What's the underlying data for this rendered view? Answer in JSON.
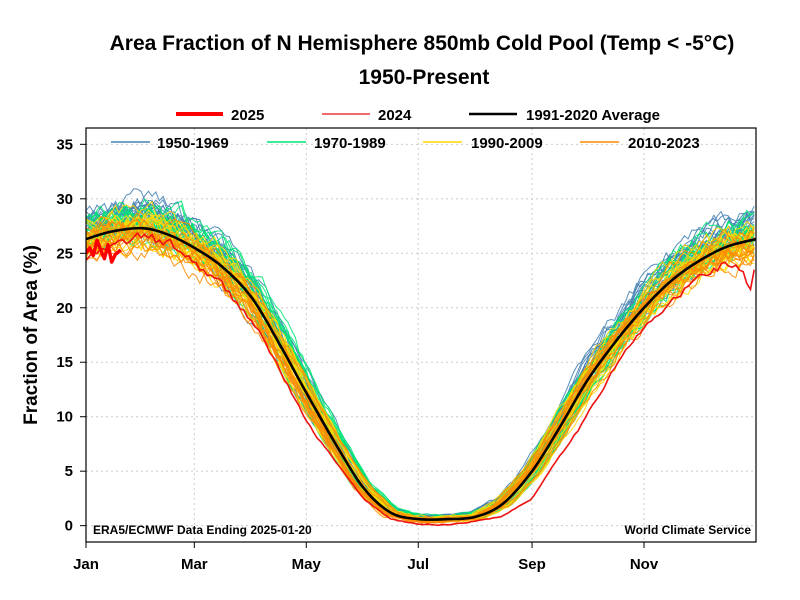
{
  "chart_data": {
    "type": "line",
    "title": "Area Fraction of N Hemisphere 850mb Cold Pool (Temp < -5°C)",
    "subtitle": "1950-Present",
    "xlabel": "",
    "ylabel": "Fraction of Area (%)",
    "xlim": [
      1,
      366
    ],
    "ylim": [
      -1.5,
      36.5
    ],
    "grid": true,
    "x_ticks": [
      {
        "day": 1,
        "label": "Jan"
      },
      {
        "day": 60,
        "label": "Mar"
      },
      {
        "day": 121,
        "label": "May"
      },
      {
        "day": 182,
        "label": "Jul"
      },
      {
        "day": 244,
        "label": "Sep"
      },
      {
        "day": 305,
        "label": "Nov"
      }
    ],
    "y_ticks": [
      0,
      5,
      10,
      15,
      20,
      25,
      30,
      35
    ],
    "annotations": {
      "left": "ERA5/ECMWF Data Ending 2025-01-20",
      "right": "World Climate Service"
    },
    "legend_top": [
      {
        "label": "2025",
        "color": "#ff0000",
        "width": 4
      },
      {
        "label": "2024",
        "color": "#ee1111",
        "width": 1.3
      },
      {
        "label": "1991-2020 Average",
        "color": "#000000",
        "width": 2.5
      }
    ],
    "legend_inner": [
      {
        "label": "1950-1969",
        "color": "#4682b4"
      },
      {
        "label": "1970-1989",
        "color": "#00e676"
      },
      {
        "label": "1990-2009",
        "color": "#ffd700"
      },
      {
        "label": "2010-2023",
        "color": "#ff8c00"
      }
    ],
    "average": {
      "name": "1991-2020 Average",
      "color": "#000000",
      "x": [
        1,
        15,
        32,
        46,
        60,
        75,
        91,
        106,
        121,
        137,
        152,
        167,
        182,
        198,
        213,
        228,
        244,
        259,
        274,
        290,
        305,
        320,
        335,
        350,
        366
      ],
      "y": [
        26.3,
        27.0,
        27.3,
        26.7,
        25.5,
        23.8,
        21.0,
        16.8,
        12.2,
        7.5,
        3.5,
        1.2,
        0.6,
        0.6,
        0.8,
        2.0,
        5.0,
        9.0,
        13.3,
        17.0,
        20.0,
        22.5,
        24.3,
        25.6,
        26.3
      ]
    },
    "series_2025": {
      "name": "2025",
      "color": "#ff0000",
      "x": [
        1,
        3,
        5,
        7,
        9,
        11,
        13,
        15,
        17,
        20
      ],
      "y": [
        25.0,
        25.5,
        24.8,
        26.2,
        25.3,
        24.5,
        25.8,
        24.2,
        24.9,
        25.3
      ]
    },
    "series_2024": {
      "name": "2024",
      "color": "#ee1111",
      "x": [
        1,
        15,
        32,
        46,
        60,
        75,
        91,
        106,
        121,
        137,
        152,
        167,
        182,
        198,
        213,
        228,
        244,
        259,
        274,
        290,
        305,
        320,
        335,
        350,
        358,
        363,
        366
      ],
      "y": [
        24.5,
        25.5,
        26.5,
        25.8,
        24.2,
        22.0,
        19.0,
        14.5,
        9.5,
        5.8,
        2.5,
        0.6,
        0.1,
        0.1,
        0.4,
        0.9,
        2.5,
        6.5,
        10.0,
        15.0,
        18.0,
        20.5,
        22.8,
        24.2,
        23.5,
        21.5,
        23.8
      ]
    },
    "group_ranges": [
      {
        "name": "1950-1969",
        "color": "#4682b4",
        "years": 20,
        "offset": 0.9
      },
      {
        "name": "1970-1989",
        "color": "#00e676",
        "years": 20,
        "offset": 0.6
      },
      {
        "name": "1990-2009",
        "color": "#ffd700",
        "years": 20,
        "offset": 0.0
      },
      {
        "name": "2010-2023",
        "color": "#ff8c00",
        "years": 14,
        "offset": -0.5
      }
    ]
  }
}
